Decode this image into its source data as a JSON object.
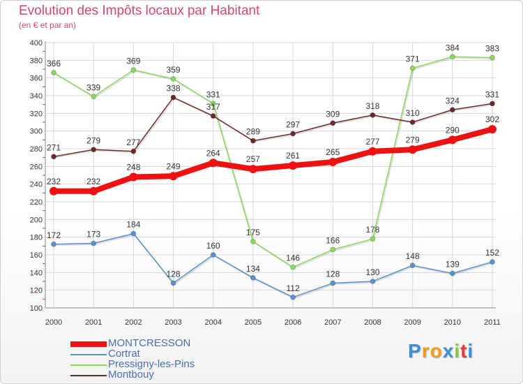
{
  "chart_data": {
    "type": "line",
    "title": "Evolution des Impôts locaux par Habitant",
    "subtitle": "(en € et par an)",
    "xlabel": "",
    "ylabel": "",
    "ylim": [
      100,
      400
    ],
    "y_ticks": [
      "100",
      "120",
      "140",
      "160",
      "180",
      "200",
      "220",
      "240",
      "260",
      "280",
      "300",
      "320",
      "340",
      "360",
      "380",
      "400"
    ],
    "categories": [
      "2000",
      "2001",
      "2002",
      "2003",
      "2004",
      "2005",
      "2006",
      "2007",
      "2008",
      "2009",
      "2010",
      "2011"
    ],
    "grid": true,
    "legend_position": "bottom-left",
    "series": [
      {
        "name": "Pressigny-les-Pins",
        "color": "#8cd65e",
        "values": [
          366,
          339,
          369,
          359,
          331,
          175,
          146,
          166,
          178,
          371,
          384,
          383
        ],
        "labels": [
          "366",
          "339",
          "369",
          "359",
          "331",
          "175",
          "146",
          "166",
          "178",
          "371",
          "384",
          "383"
        ]
      },
      {
        "name": "Montbouy",
        "color": "#6b2a2a",
        "values": [
          271,
          279,
          277,
          338,
          317,
          289,
          297,
          309,
          318,
          310,
          324,
          331
        ],
        "labels": [
          "271",
          "279",
          "277",
          "338",
          "317",
          "289",
          "297",
          "309",
          "318",
          "310",
          "324",
          "331"
        ]
      },
      {
        "name": "Cortrat",
        "color": "#5a93c8",
        "values": [
          172,
          173,
          184,
          128,
          160,
          134,
          112,
          128,
          130,
          148,
          139,
          152
        ],
        "labels": [
          "172",
          "173",
          "184",
          "128",
          "160",
          "134",
          "112",
          "128",
          "130",
          "148",
          "139",
          "152"
        ]
      },
      {
        "name": "MONTCRESSON",
        "color": "#ee1111",
        "values": [
          232,
          232,
          248,
          249,
          264,
          257,
          261,
          265,
          277,
          279,
          290,
          302
        ],
        "labels": [
          "232",
          "232",
          "248",
          "249",
          "264",
          "257",
          "261",
          "265",
          "277",
          "279",
          "290",
          "302"
        ]
      }
    ]
  },
  "legend": [
    {
      "label": "MONTCRESSON",
      "color": "#ee1111"
    },
    {
      "label": "Cortrat",
      "color": "#5a93c8"
    },
    {
      "label": "Pressigny-les-Pins",
      "color": "#8cd65e"
    },
    {
      "label": "Montbouy",
      "color": "#6b2a2a"
    }
  ],
  "brand": {
    "letters": [
      "P",
      "r",
      "o",
      "x",
      "i",
      "t",
      "i"
    ],
    "colors": [
      "#3a8fd6",
      "#f39a1e",
      "#f39a1e",
      "#3a8fd6",
      "#8cc63f",
      "#e53935",
      "#3a8fd6"
    ]
  }
}
